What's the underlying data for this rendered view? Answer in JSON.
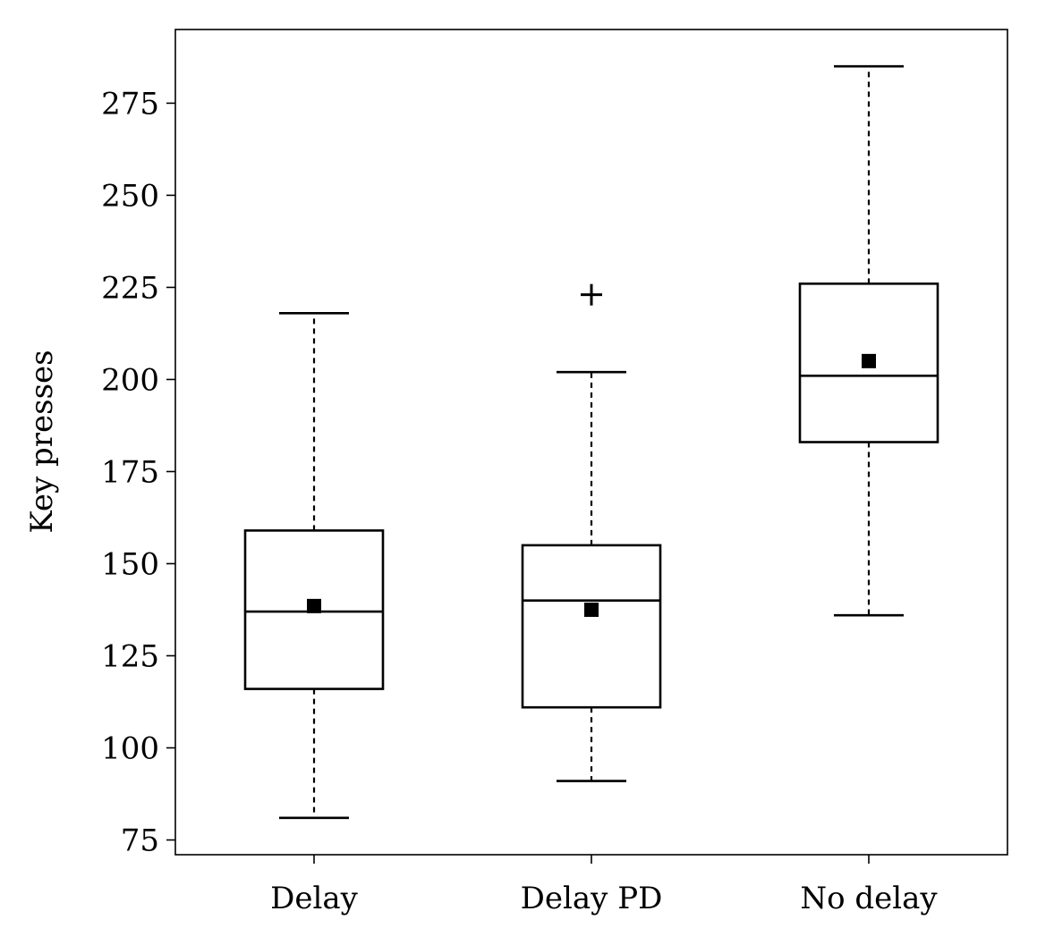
{
  "chart_data": {
    "type": "box",
    "ylabel": "Key presses",
    "xlabel": "",
    "title": "",
    "ylim": [
      71,
      295
    ],
    "yticks": [
      75,
      100,
      125,
      150,
      175,
      200,
      225,
      250,
      275
    ],
    "grid": false,
    "categories": [
      "Delay",
      "Delay PD",
      "No delay"
    ],
    "boxes": [
      {
        "category": "Delay",
        "whisker_low": 81,
        "q1": 116,
        "median": 137,
        "q3": 159,
        "whisker_high": 218,
        "mean": 138.5,
        "outliers": []
      },
      {
        "category": "Delay PD",
        "whisker_low": 91,
        "q1": 111,
        "median": 140,
        "q3": 155,
        "whisker_high": 202,
        "mean": 137.5,
        "outliers": [
          223
        ]
      },
      {
        "category": "No delay",
        "whisker_low": 136,
        "q1": 183,
        "median": 201,
        "q3": 226,
        "whisker_high": 285,
        "mean": 205,
        "outliers": []
      }
    ]
  }
}
